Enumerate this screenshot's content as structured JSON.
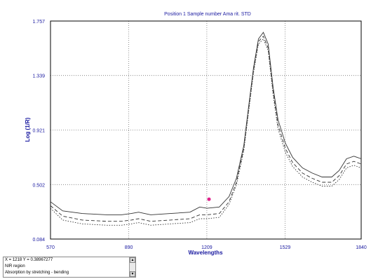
{
  "chart_data": {
    "type": "line",
    "title": "Position 1  Sample number Ama rit. STD",
    "xlabel": "Wavelengths",
    "ylabel": "Log (1/R)",
    "xlim": [
      570,
      1840
    ],
    "ylim": [
      0.084,
      1.757
    ],
    "xticks": [
      "570",
      "890",
      "1209",
      "1529",
      "1840"
    ],
    "xtick_values": [
      570,
      890,
      1209,
      1529,
      1840
    ],
    "yticks": [
      "1.757",
      "1.339",
      "0.921",
      "0.502",
      "0.084"
    ],
    "ytick_values": [
      1.757,
      1.339,
      0.921,
      0.502,
      0.084
    ],
    "grid": "dotted",
    "series": [
      {
        "style": "solid",
        "x": [
          570,
          620,
          700,
          800,
          860,
          900,
          930,
          980,
          1060,
          1140,
          1180,
          1210,
          1260,
          1300,
          1330,
          1360,
          1380,
          1400,
          1420,
          1440,
          1460,
          1480,
          1500,
          1530,
          1560,
          1600,
          1640,
          1680,
          1720,
          1750,
          1780,
          1810,
          1840
        ],
        "y": [
          0.37,
          0.3,
          0.28,
          0.27,
          0.27,
          0.28,
          0.29,
          0.27,
          0.28,
          0.29,
          0.33,
          0.32,
          0.33,
          0.41,
          0.55,
          0.8,
          1.1,
          1.4,
          1.62,
          1.67,
          1.58,
          1.25,
          1.0,
          0.82,
          0.71,
          0.63,
          0.59,
          0.56,
          0.56,
          0.61,
          0.7,
          0.72,
          0.7
        ]
      },
      {
        "style": "dashed",
        "x": [
          570,
          620,
          700,
          800,
          860,
          900,
          930,
          980,
          1060,
          1140,
          1180,
          1210,
          1260,
          1300,
          1330,
          1360,
          1380,
          1400,
          1420,
          1440,
          1460,
          1480,
          1500,
          1530,
          1560,
          1600,
          1640,
          1680,
          1720,
          1750,
          1780,
          1810,
          1840
        ],
        "y": [
          0.34,
          0.26,
          0.23,
          0.22,
          0.22,
          0.23,
          0.24,
          0.22,
          0.23,
          0.24,
          0.27,
          0.27,
          0.28,
          0.37,
          0.52,
          0.78,
          1.08,
          1.38,
          1.6,
          1.64,
          1.55,
          1.22,
          0.96,
          0.78,
          0.67,
          0.59,
          0.55,
          0.52,
          0.52,
          0.57,
          0.66,
          0.68,
          0.66
        ]
      },
      {
        "style": "dotted",
        "x": [
          570,
          620,
          700,
          800,
          860,
          900,
          930,
          980,
          1060,
          1140,
          1180,
          1210,
          1260,
          1300,
          1330,
          1360,
          1380,
          1400,
          1420,
          1440,
          1460,
          1480,
          1500,
          1530,
          1560,
          1600,
          1640,
          1680,
          1720,
          1750,
          1780,
          1810,
          1840
        ],
        "y": [
          0.32,
          0.23,
          0.2,
          0.19,
          0.19,
          0.2,
          0.21,
          0.19,
          0.2,
          0.21,
          0.24,
          0.24,
          0.25,
          0.35,
          0.5,
          0.76,
          1.06,
          1.36,
          1.58,
          1.62,
          1.53,
          1.19,
          0.93,
          0.75,
          0.64,
          0.56,
          0.52,
          0.49,
          0.49,
          0.54,
          0.63,
          0.65,
          0.63
        ]
      }
    ],
    "marker": {
      "x": 1218,
      "y": 0.3896,
      "color": "#e0208a"
    },
    "line_color": "#333333",
    "axis_color": "#1a1aa0"
  },
  "readout": {
    "coords": "X = 1218      Y = 0.38967277",
    "region": "NIR region",
    "note": "Absorption by stretching - bending"
  },
  "scroll_up_icon": "scroll-up-icon",
  "scroll_down_icon": "scroll-down-icon"
}
